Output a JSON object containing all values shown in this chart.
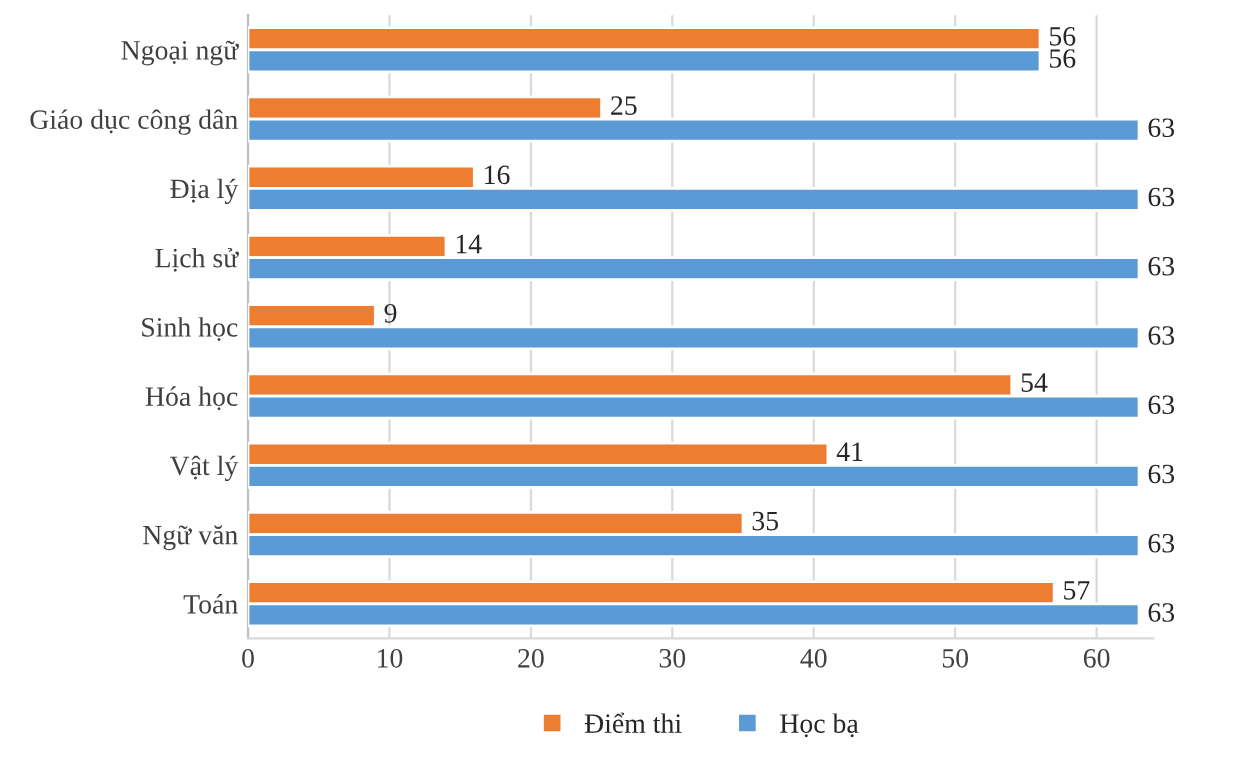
{
  "chart_data": {
    "type": "bar",
    "orientation": "horizontal",
    "categories": [
      "Ngoại ngữ",
      "Giáo dục công dân",
      "Địa lý",
      "Lịch sử",
      "Sinh học",
      "Hóa học",
      "Vật lý",
      "Ngữ văn",
      "Toán"
    ],
    "series": [
      {
        "name": "Điểm thi",
        "color": "#ed7d31",
        "values": [
          56,
          25,
          16,
          14,
          9,
          54,
          41,
          35,
          57
        ]
      },
      {
        "name": "Học bạ",
        "color": "#5b9bd5",
        "values": [
          56,
          63,
          63,
          63,
          63,
          63,
          63,
          63,
          63
        ]
      }
    ],
    "xlim": [
      0,
      64
    ],
    "xticks": [
      0,
      10,
      20,
      30,
      40,
      50,
      60
    ],
    "grid": "x",
    "legend": "bottom",
    "data_labels": true
  }
}
